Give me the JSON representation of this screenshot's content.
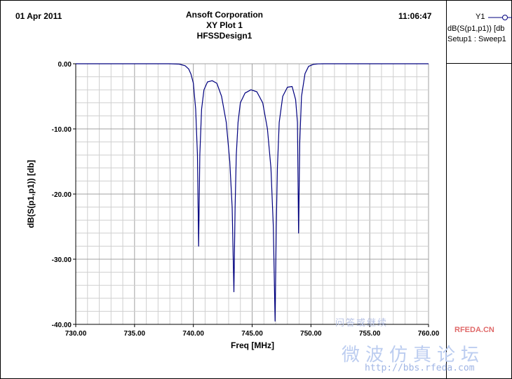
{
  "header": {
    "date": "01 Apr 2011",
    "company": "Ansoft Corporation",
    "plot_title": "XY Plot 1",
    "design": "HFSSDesign1",
    "time": "11:06:47"
  },
  "legend": {
    "tag": "Y1",
    "trace": "dB(S(p1,p1)) [db",
    "setup": "Setup1 : Sweep1"
  },
  "watermark": {
    "line1": "问答或继续",
    "brand": "RFEDA.CN",
    "chinese": "微波仿真论坛",
    "url": "http://bbs.rfeda.com"
  },
  "chart_data": {
    "type": "line",
    "title": "XY Plot 1",
    "xlabel": "Freq [MHz]",
    "ylabel": "dB(S(p1,p1)) [db]",
    "xlim": [
      730,
      760
    ],
    "ylim": [
      -40,
      0
    ],
    "x_ticks": [
      "730.00",
      "735.00",
      "740.00",
      "745.00",
      "750.00",
      "755.00",
      "760.00"
    ],
    "y_ticks": [
      "0.00",
      "-10.00",
      "-20.00",
      "-30.00",
      "-40.00"
    ],
    "grid": true,
    "colors": {
      "line": "#00007f",
      "grid_major": "#a0a0a0",
      "grid_minor": "#cfcfcf"
    },
    "series": [
      {
        "name": "dB(S(p1,p1)) [db",
        "x": [
          730.0,
          738.0,
          738.8,
          739.3,
          739.6,
          739.8,
          740.0,
          740.2,
          740.35,
          740.45,
          740.55,
          740.7,
          740.9,
          741.2,
          741.6,
          742.0,
          742.4,
          742.8,
          743.1,
          743.3,
          743.45,
          743.55,
          743.65,
          743.8,
          744.0,
          744.4,
          744.9,
          745.4,
          745.9,
          746.3,
          746.6,
          746.8,
          746.95,
          747.05,
          747.15,
          747.3,
          747.6,
          748.0,
          748.4,
          748.7,
          748.85,
          748.95,
          749.05,
          749.2,
          749.5,
          749.8,
          750.2,
          750.6,
          751.0,
          760.0
        ],
        "y": [
          0.0,
          0.0,
          -0.05,
          -0.3,
          -0.8,
          -1.6,
          -3.0,
          -7.0,
          -14.0,
          -28.0,
          -14.0,
          -7.0,
          -4.0,
          -2.8,
          -2.6,
          -3.0,
          -5.0,
          -9.0,
          -15.0,
          -22.0,
          -35.0,
          -22.0,
          -14.0,
          -9.0,
          -6.0,
          -4.5,
          -4.0,
          -4.3,
          -6.0,
          -10.0,
          -16.0,
          -25.0,
          -39.5,
          -25.0,
          -16.0,
          -9.0,
          -5.0,
          -3.6,
          -3.5,
          -5.5,
          -9.0,
          -26.0,
          -12.0,
          -5.0,
          -1.5,
          -0.4,
          -0.1,
          -0.02,
          0.0,
          0.0
        ]
      }
    ]
  }
}
